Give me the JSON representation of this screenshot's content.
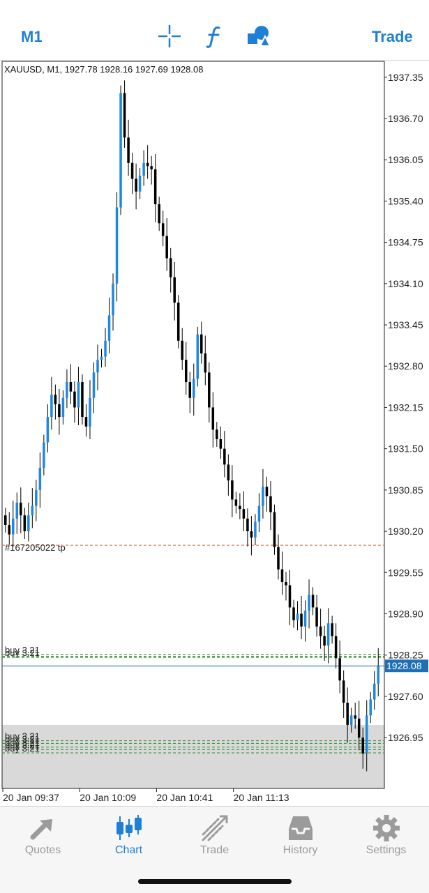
{
  "topbar": {
    "timeframe": "M1",
    "trade_label": "Trade",
    "icons": [
      "crosshair-icon",
      "function-icon",
      "objects-icon"
    ],
    "accent": "#1e7fd6"
  },
  "chart": {
    "info_line": "XAUUSD, M1, 1927.78 1928.16 1927.69 1928.08",
    "current_price": "1928.08",
    "price_labels": [
      "1937.35",
      "1936.70",
      "1936.05",
      "1935.40",
      "1934.75",
      "1934.10",
      "1933.45",
      "1932.80",
      "1932.15",
      "1931.50",
      "1930.85",
      "1930.20",
      "1929.55",
      "1928.90",
      "1928.25",
      "1927.60",
      "1926.95"
    ],
    "time_labels": [
      "20 Jan 09:37",
      "20 Jan 10:09",
      "20 Jan 10:41",
      "20 Jan 11:13"
    ],
    "tp_label": "#167205022 tp",
    "buy_label": "buy 3.21",
    "colors": {
      "bull": "#1e88e5",
      "bear": "#000000",
      "tp_line": "#e06040",
      "buy_line": "#2e8b2e",
      "price_line": "#1f6fb5",
      "shade": "#d9d9d9"
    }
  },
  "chart_data": {
    "type": "candlestick",
    "symbol": "XAUUSD",
    "timeframe": "M1",
    "ylim": [
      1926.15,
      1937.6
    ],
    "current": 1928.08,
    "tp_level": 1929.98,
    "buy_levels_upper": [
      1928.21,
      1928.23,
      1928.26
    ],
    "buy_levels_lower": [
      1926.9,
      1926.86,
      1926.8,
      1926.76,
      1926.71
    ],
    "shaded_zone": [
      1926.15,
      1927.15
    ],
    "x_ticks": [
      "20 Jan 09:37",
      "20 Jan 10:09",
      "20 Jan 10:41",
      "20 Jan 11:13"
    ],
    "closes": [
      1930.3,
      1930.15,
      1930.4,
      1930.65,
      1930.45,
      1930.2,
      1930.45,
      1930.6,
      1930.85,
      1931.2,
      1931.6,
      1932.0,
      1932.35,
      1932.2,
      1932.0,
      1932.3,
      1932.55,
      1932.4,
      1932.15,
      1932.55,
      1932.0,
      1931.85,
      1932.3,
      1932.7,
      1932.9,
      1932.95,
      1933.2,
      1933.6,
      1934.1,
      1935.3,
      1937.1,
      1936.4,
      1936.0,
      1935.75,
      1935.55,
      1935.8,
      1936.0,
      1935.95,
      1935.9,
      1935.35,
      1935.05,
      1934.85,
      1934.5,
      1934.2,
      1933.8,
      1933.2,
      1932.9,
      1932.55,
      1932.3,
      1932.6,
      1933.3,
      1933.0,
      1932.7,
      1932.15,
      1931.8,
      1931.65,
      1931.5,
      1931.25,
      1931.0,
      1930.7,
      1930.6,
      1930.55,
      1930.4,
      1930.2,
      1930.1,
      1930.35,
      1930.6,
      1930.9,
      1930.75,
      1930.5,
      1929.95,
      1929.6,
      1929.4,
      1929.35,
      1929.0,
      1928.8,
      1928.9,
      1928.7,
      1928.95,
      1929.2,
      1929.0,
      1928.7,
      1928.55,
      1928.4,
      1928.75,
      1928.55,
      1928.2,
      1927.85,
      1927.5,
      1927.15,
      1927.3,
      1927.25,
      1926.95,
      1926.7,
      1927.3,
      1927.55,
      1927.8,
      1928.08
    ]
  },
  "tabs": [
    {
      "label": "Quotes",
      "icon": "quotes-icon"
    },
    {
      "label": "Chart",
      "icon": "chart-icon"
    },
    {
      "label": "Trade",
      "icon": "trade-icon"
    },
    {
      "label": "History",
      "icon": "history-icon"
    },
    {
      "label": "Settings",
      "icon": "settings-icon"
    }
  ]
}
